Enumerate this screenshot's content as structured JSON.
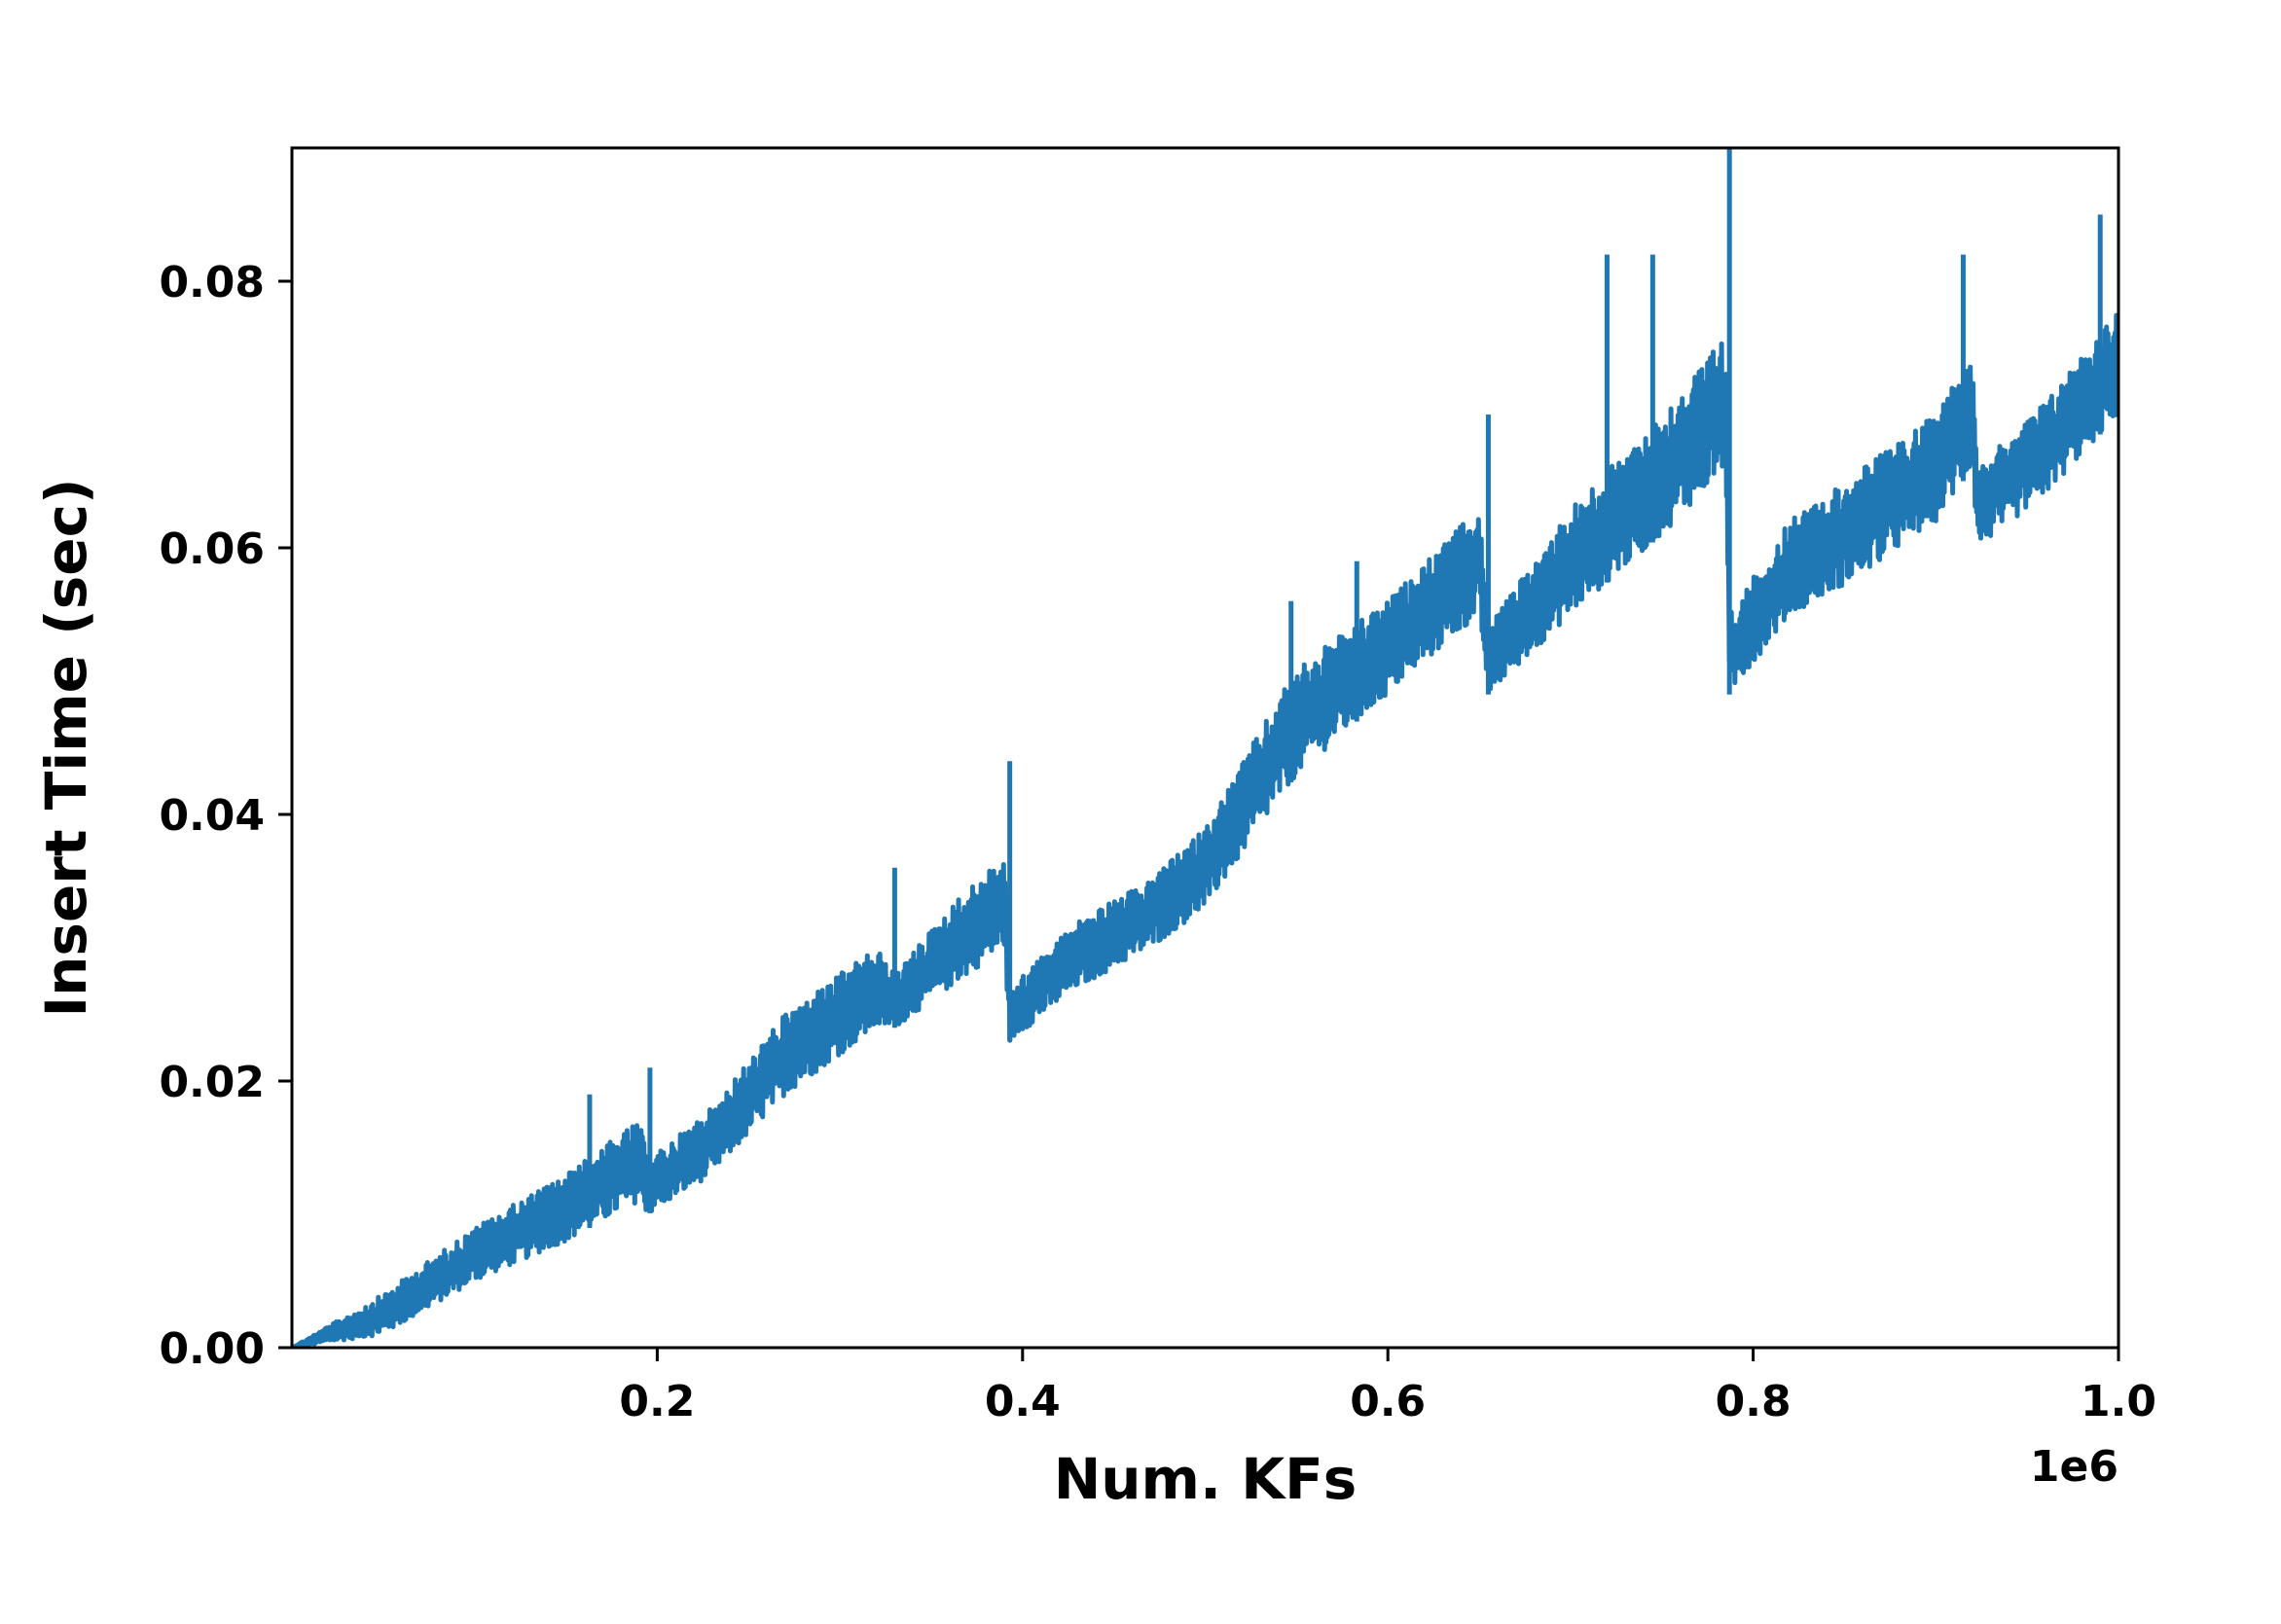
{
  "chart_data": {
    "type": "line",
    "title": "",
    "xlabel": "Num. KFs",
    "ylabel": "Insert Time (sec)",
    "x_offset_label": "1e6",
    "xlim": [
      0.0,
      1.0
    ],
    "ylim": [
      0.0,
      0.09
    ],
    "x_scale_multiplier": 1000000,
    "x_ticks": [
      0.2,
      0.4,
      0.6,
      0.8,
      1.0
    ],
    "x_tick_labels": [
      "0.2",
      "0.4",
      "0.6",
      "0.8",
      "1.0"
    ],
    "y_ticks": [
      0.0,
      0.02,
      0.04,
      0.06,
      0.08
    ],
    "y_tick_labels": [
      "0.00",
      "0.02",
      "0.04",
      "0.06",
      "0.08"
    ],
    "grid": false,
    "legend": "none",
    "series_color": "#1f77b4",
    "series": [
      {
        "trend_lower": [
          [
            0.0,
            0.0
          ],
          [
            0.05,
            0.001
          ],
          [
            0.1,
            0.005
          ],
          [
            0.15,
            0.008
          ],
          [
            0.19,
            0.011
          ],
          [
            0.195,
            0.01
          ],
          [
            0.23,
            0.013
          ],
          [
            0.27,
            0.019
          ],
          [
            0.32,
            0.024
          ],
          [
            0.33,
            0.024
          ],
          [
            0.36,
            0.027
          ],
          [
            0.39,
            0.03
          ],
          [
            0.393,
            0.023
          ],
          [
            0.43,
            0.027
          ],
          [
            0.47,
            0.03
          ],
          [
            0.5,
            0.033
          ],
          [
            0.55,
            0.043
          ],
          [
            0.6,
            0.049
          ],
          [
            0.65,
            0.055
          ],
          [
            0.655,
            0.049
          ],
          [
            0.7,
            0.055
          ],
          [
            0.75,
            0.061
          ],
          [
            0.785,
            0.066
          ],
          [
            0.787,
            0.049
          ],
          [
            0.82,
            0.055
          ],
          [
            0.86,
            0.058
          ],
          [
            0.9,
            0.062
          ],
          [
            0.92,
            0.066
          ],
          [
            0.923,
            0.06
          ],
          [
            0.96,
            0.064
          ],
          [
            1.0,
            0.07
          ]
        ],
        "trend_upper": [
          [
            0.0,
            0.0
          ],
          [
            0.05,
            0.004
          ],
          [
            0.1,
            0.009
          ],
          [
            0.15,
            0.013
          ],
          [
            0.19,
            0.017
          ],
          [
            0.195,
            0.014
          ],
          [
            0.23,
            0.018
          ],
          [
            0.27,
            0.025
          ],
          [
            0.32,
            0.03
          ],
          [
            0.33,
            0.028
          ],
          [
            0.36,
            0.033
          ],
          [
            0.39,
            0.037
          ],
          [
            0.393,
            0.027
          ],
          [
            0.43,
            0.032
          ],
          [
            0.47,
            0.035
          ],
          [
            0.5,
            0.039
          ],
          [
            0.55,
            0.051
          ],
          [
            0.6,
            0.056
          ],
          [
            0.65,
            0.063
          ],
          [
            0.655,
            0.054
          ],
          [
            0.7,
            0.063
          ],
          [
            0.75,
            0.07
          ],
          [
            0.785,
            0.076
          ],
          [
            0.787,
            0.055
          ],
          [
            0.82,
            0.062
          ],
          [
            0.86,
            0.066
          ],
          [
            0.9,
            0.07
          ],
          [
            0.92,
            0.075
          ],
          [
            0.923,
            0.066
          ],
          [
            0.96,
            0.071
          ],
          [
            1.0,
            0.078
          ]
        ],
        "spikes": [
          [
            0.163,
            0.019
          ],
          [
            0.196,
            0.021
          ],
          [
            0.33,
            0.036
          ],
          [
            0.393,
            0.044
          ],
          [
            0.547,
            0.056
          ],
          [
            0.583,
            0.059
          ],
          [
            0.655,
            0.07
          ],
          [
            0.72,
            0.082
          ],
          [
            0.745,
            0.082
          ],
          [
            0.787,
            0.09
          ],
          [
            0.915,
            0.082
          ],
          [
            0.99,
            0.085
          ]
        ]
      }
    ]
  }
}
